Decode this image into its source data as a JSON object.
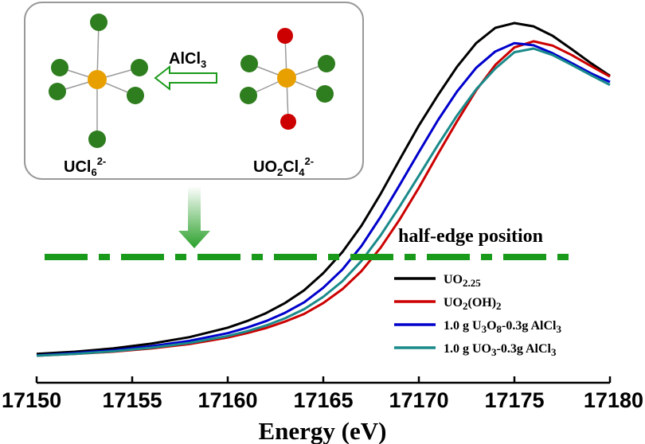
{
  "chart_data": {
    "type": "line",
    "xlabel": "Energy (eV)",
    "ylabel": "",
    "xlim": [
      17150,
      17180
    ],
    "xticks": [
      "17150",
      "17155",
      "17160",
      "17165",
      "17170",
      "17175",
      "17180"
    ],
    "series": [
      {
        "name": "UO2.25",
        "color": "#000000",
        "x": [
          17150,
          17152,
          17154,
          17156,
          17158,
          17160,
          17161,
          17162,
          17163,
          17164,
          17165,
          17166,
          17167,
          17168,
          17169,
          17170,
          17171,
          17172,
          17173,
          17174,
          17175,
          17176,
          17177,
          17178,
          17179,
          17180
        ],
        "y": [
          0.04,
          0.046,
          0.055,
          0.068,
          0.086,
          0.112,
          0.13,
          0.152,
          0.18,
          0.215,
          0.262,
          0.32,
          0.393,
          0.48,
          0.575,
          0.668,
          0.752,
          0.83,
          0.895,
          0.937,
          0.95,
          0.941,
          0.915,
          0.878,
          0.84,
          0.805
        ]
      },
      {
        "name": "UO2(OH)2",
        "color": "#cc0000",
        "x": [
          17150,
          17152,
          17154,
          17156,
          17158,
          17160,
          17161,
          17162,
          17163,
          17164,
          17165,
          17166,
          17167,
          17168,
          17169,
          17170,
          17171,
          17172,
          17173,
          17174,
          17175,
          17176,
          17177,
          17178,
          17179,
          17180
        ],
        "y": [
          0.035,
          0.04,
          0.046,
          0.055,
          0.067,
          0.085,
          0.097,
          0.111,
          0.129,
          0.15,
          0.18,
          0.218,
          0.268,
          0.332,
          0.41,
          0.497,
          0.59,
          0.68,
          0.765,
          0.835,
          0.883,
          0.9,
          0.888,
          0.862,
          0.832,
          0.803
        ]
      },
      {
        "name": "1.0 g U3O8-0.3g AlCl3",
        "color": "#0000cc",
        "x": [
          17150,
          17152,
          17154,
          17156,
          17158,
          17160,
          17161,
          17162,
          17163,
          17164,
          17165,
          17166,
          17167,
          17168,
          17169,
          17170,
          17171,
          17172,
          17173,
          17174,
          17175,
          17176,
          17177,
          17178,
          17179,
          17180
        ],
        "y": [
          0.036,
          0.042,
          0.05,
          0.061,
          0.076,
          0.097,
          0.112,
          0.13,
          0.153,
          0.182,
          0.222,
          0.272,
          0.337,
          0.417,
          0.505,
          0.595,
          0.683,
          0.762,
          0.827,
          0.872,
          0.895,
          0.889,
          0.867,
          0.84,
          0.812,
          0.788
        ]
      },
      {
        "name": "1.0 g UO3-0.3g AlCl3",
        "color": "#1a8a8a",
        "x": [
          17150,
          17152,
          17154,
          17156,
          17158,
          17160,
          17161,
          17162,
          17163,
          17164,
          17165,
          17166,
          17167,
          17168,
          17169,
          17170,
          17171,
          17172,
          17173,
          17174,
          17175,
          17176,
          17177,
          17178,
          17179,
          17180
        ],
        "y": [
          0.035,
          0.04,
          0.047,
          0.057,
          0.07,
          0.089,
          0.102,
          0.118,
          0.138,
          0.163,
          0.197,
          0.24,
          0.296,
          0.366,
          0.446,
          0.53,
          0.615,
          0.696,
          0.768,
          0.825,
          0.87,
          0.88,
          0.862,
          0.835,
          0.807,
          0.78
        ]
      }
    ],
    "annotations": {
      "half_edge_label": "half-edge position",
      "half_edge_level": 0.275,
      "inset_reagent": "AlCl",
      "inset_reagent_sub": "3",
      "inset_left_label": "UCl",
      "inset_left_sub": "6",
      "inset_left_sup": "2-",
      "inset_right_label": "UO",
      "inset_right_sub1": "2",
      "inset_right_mid": "Cl",
      "inset_right_sub2": "4",
      "inset_right_sup": "2-"
    },
    "legend": {
      "placement": "bottom-right",
      "entries": [
        {
          "parts": [
            "UO",
            "2.25"
          ],
          "color": "#000000"
        },
        {
          "parts": [
            "UO",
            "2",
            "(OH)",
            "2"
          ],
          "color": "#cc0000"
        },
        {
          "parts": [
            "1.0 g U",
            "3",
            "O",
            "8",
            "-0.3g AlCl",
            "3"
          ],
          "color": "#0000cc"
        },
        {
          "parts": [
            "1.0 g UO",
            "3",
            "-0.3g AlCl",
            "3"
          ],
          "color": "#1a8a8a"
        }
      ]
    },
    "colors": {
      "green_dash": "#1a9a1a",
      "atom_u": "#e8a000",
      "atom_cl": "#2e7d1e",
      "atom_o": "#cc0000",
      "inset_border": "#999999"
    }
  }
}
